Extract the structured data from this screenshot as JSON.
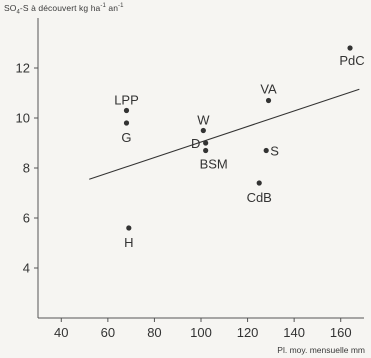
{
  "chart_data": {
    "type": "scatter",
    "ylabel_prefix": "SO",
    "ylabel_sub": "4",
    "ylabel_mid": "-S à découvert kg ha",
    "ylabel_sup1": "-1",
    "ylabel_mid2": " an",
    "ylabel_sup2": "-1",
    "xlabel": "Pl. moy. mensuelle mm",
    "xlim": [
      30,
      170
    ],
    "ylim": [
      2,
      14
    ],
    "xticks": [
      40,
      60,
      80,
      100,
      120,
      140,
      160
    ],
    "yticks": [
      4,
      6,
      8,
      10,
      12
    ],
    "grid": false,
    "points": [
      {
        "label": "LPP",
        "x": 68,
        "y": 10.3
      },
      {
        "label": "G",
        "x": 68,
        "y": 9.8
      },
      {
        "label": "H",
        "x": 69,
        "y": 5.6
      },
      {
        "label": "W",
        "x": 101,
        "y": 9.5
      },
      {
        "label": "D",
        "x": 102,
        "y": 9.0
      },
      {
        "label": "BSM",
        "x": 102,
        "y": 8.7
      },
      {
        "label": "VA",
        "x": 129,
        "y": 10.7
      },
      {
        "label": "S",
        "x": 128,
        "y": 8.7
      },
      {
        "label": "CdB",
        "x": 125,
        "y": 7.4
      },
      {
        "label": "PdC",
        "x": 164,
        "y": 12.8
      }
    ],
    "trendline": {
      "x": [
        52,
        168
      ],
      "y": [
        7.55,
        11.15
      ]
    }
  }
}
